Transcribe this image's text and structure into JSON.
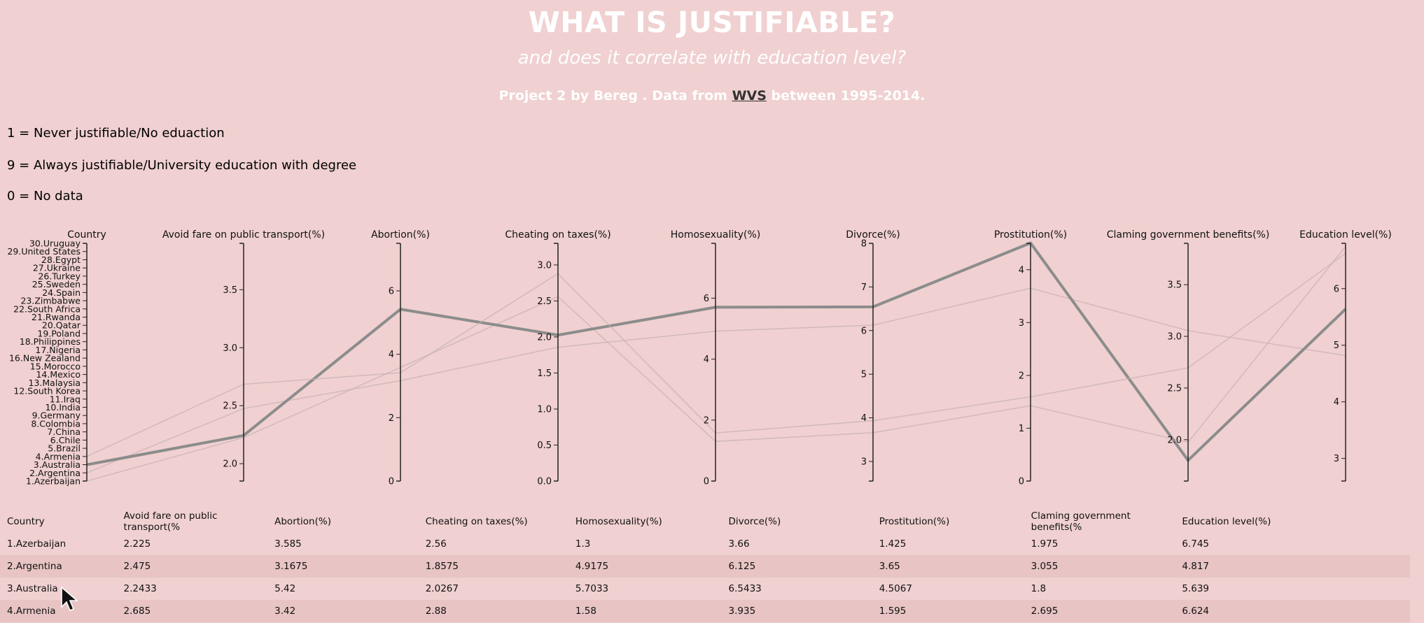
{
  "header": {
    "title": "WHAT IS JUSTIFIABLE?",
    "subtitle": "and does it correlate with education level?",
    "credit_prefix": "Project 2 by Bereg . Data from ",
    "credit_link": "WVS",
    "credit_suffix": " between 1995-2014."
  },
  "legend": {
    "line1": "1 = Never justifiable/No eduaction",
    "line9": "9 = Always justifiable/University education with degree",
    "line0": "0 = No data"
  },
  "colors": {
    "background": "#f0d0d0",
    "highlight": "#8c8c8c",
    "background_lines": "#c4b0b0",
    "axis": "#222222"
  },
  "chart_data": {
    "type": "parallel-coordinates",
    "dimensions": [
      {
        "key": "country",
        "label": "Country",
        "type": "ordinal",
        "ticks": [
          "1.Azerbaijan",
          "2.Argentina",
          "3.Australia",
          "4.Armenia",
          "5.Brazil",
          "6.Chile",
          "7.China",
          "8.Colombia",
          "9.Germany",
          "10.India",
          "11.Iraq",
          "12.South Korea",
          "13.Malaysia",
          "14.Mexico",
          "15.Morocco",
          "16.New Zealand",
          "17.Nigeria",
          "18.Philippines",
          "19.Poland",
          "20.Qatar",
          "21.Rwanda",
          "22.South Africa",
          "23.Zimbabwe",
          "24.Spain",
          "25.Sweden",
          "26.Turkey",
          "27.Ukraine",
          "28.Egypt",
          "29.United States",
          "30.Uruguay"
        ]
      },
      {
        "key": "fare",
        "label": "Avoid fare on public transport(%)",
        "domain": [
          1.85,
          3.9
        ],
        "ticks": [
          2.0,
          2.5,
          3.0,
          3.5
        ]
      },
      {
        "key": "abortion",
        "label": "Abortion(%)",
        "domain": [
          0,
          7.5
        ],
        "ticks": [
          0,
          2,
          4,
          6
        ]
      },
      {
        "key": "taxes",
        "label": "Cheating on taxes(%)",
        "domain": [
          0,
          3.3
        ],
        "ticks": [
          0.0,
          0.5,
          1.0,
          1.5,
          2.0,
          2.5,
          3.0
        ]
      },
      {
        "key": "homo",
        "label": "Homosexuality(%)",
        "domain": [
          0,
          7.8
        ],
        "ticks": [
          0,
          2,
          4,
          6
        ]
      },
      {
        "key": "divorce",
        "label": "Divorce(%)",
        "domain": [
          2.55,
          8
        ],
        "ticks": [
          3,
          4,
          5,
          6,
          7,
          8
        ]
      },
      {
        "key": "prostitution",
        "label": "Prostitution(%)",
        "domain": [
          0,
          4.5
        ],
        "ticks": [
          0,
          1,
          2,
          3,
          4
        ]
      },
      {
        "key": "benefits",
        "label": "Claming government benefits(%)",
        "domain": [
          1.6,
          3.9
        ],
        "ticks": [
          2.0,
          2.5,
          3.0,
          3.5
        ]
      },
      {
        "key": "education",
        "label": "Education level(%)",
        "domain": [
          2.6,
          6.8
        ],
        "ticks": [
          3,
          4,
          5,
          6
        ]
      }
    ],
    "rows": [
      {
        "country": "1.Azerbaijan",
        "fare": 2.225,
        "abortion": 3.585,
        "taxes": 2.56,
        "homo": 1.3,
        "divorce": 3.66,
        "prostitution": 1.425,
        "benefits": 1.975,
        "education": 6.745
      },
      {
        "country": "2.Argentina",
        "fare": 2.475,
        "abortion": 3.1675,
        "taxes": 1.8575,
        "homo": 4.9175,
        "divorce": 6.125,
        "prostitution": 3.65,
        "benefits": 3.055,
        "education": 4.817
      },
      {
        "country": "3.Australia",
        "fare": 2.2433,
        "abortion": 5.42,
        "taxes": 2.0267,
        "homo": 5.7033,
        "divorce": 6.5433,
        "prostitution": 4.5067,
        "benefits": 1.8,
        "education": 5.639
      },
      {
        "country": "4.Armenia",
        "fare": 2.685,
        "abortion": 3.42,
        "taxes": 2.88,
        "homo": 1.58,
        "divorce": 3.935,
        "prostitution": 1.595,
        "benefits": 2.695,
        "education": 6.624
      }
    ],
    "highlighted_row": 2
  },
  "table": {
    "columns": [
      "Country",
      "Avoid fare on public transport(%",
      "Abortion(%)",
      "Cheating on taxes(%)",
      "Homosexuality(%)",
      "Divorce(%)",
      "Prostitution(%)",
      "Claming government benefits(%",
      "Education level(%)"
    ],
    "rows": [
      [
        "1.Azerbaijan",
        "2.225",
        "3.585",
        "2.56",
        "1.3",
        "3.66",
        "1.425",
        "1.975",
        "6.745"
      ],
      [
        "2.Argentina",
        "2.475",
        "3.1675",
        "1.8575",
        "4.9175",
        "6.125",
        "3.65",
        "3.055",
        "4.817"
      ],
      [
        "3.Australia",
        "2.2433",
        "5.42",
        "2.0267",
        "5.7033",
        "6.5433",
        "4.5067",
        "1.8",
        "5.639"
      ],
      [
        "4.Armenia",
        "2.685",
        "3.42",
        "2.88",
        "1.58",
        "3.935",
        "1.595",
        "2.695",
        "6.624"
      ]
    ]
  }
}
